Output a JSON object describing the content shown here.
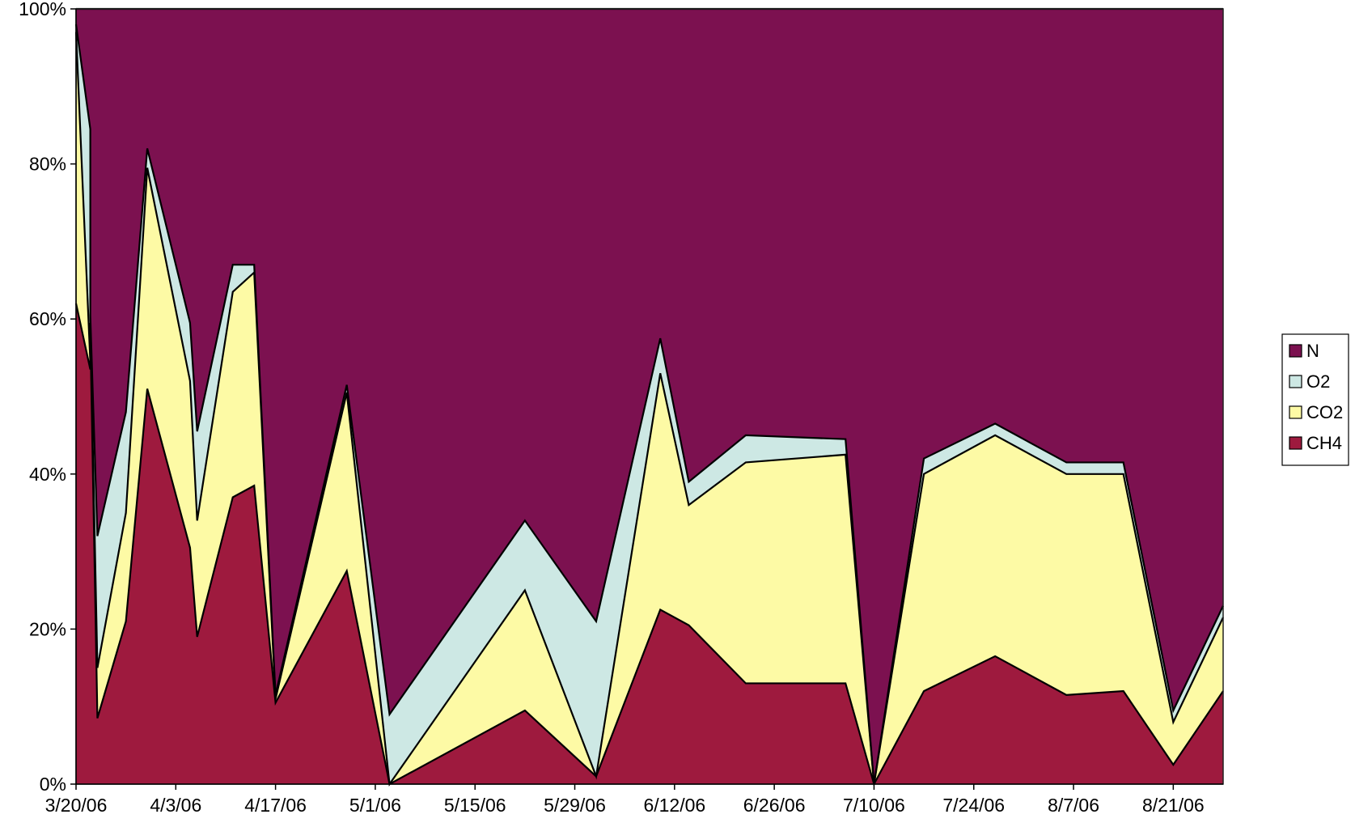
{
  "chart_data": {
    "type": "area",
    "stacked": true,
    "percent": true,
    "title": "",
    "xlabel": "",
    "ylabel": "",
    "ylim": [
      0,
      100
    ],
    "y_ticks": [
      "0%",
      "20%",
      "40%",
      "60%",
      "80%",
      "100%"
    ],
    "x_range": [
      "3/20/06",
      "8/28/06"
    ],
    "x_ticks": [
      "3/20/06",
      "4/3/06",
      "4/17/06",
      "5/1/06",
      "5/15/06",
      "5/29/06",
      "6/12/06",
      "6/26/06",
      "7/10/06",
      "7/24/06",
      "8/7/06",
      "8/21/06"
    ],
    "legend_position": "right",
    "grid": false,
    "x": [
      "3/20/06",
      "3/22/06",
      "3/22/06",
      "3/22/06",
      "3/23/06",
      "3/27/06",
      "3/30/06",
      "4/5/06",
      "4/6/06",
      "4/11/06",
      "4/14/06",
      "4/14/06",
      "4/17/06",
      "4/27/06",
      "5/3/06",
      "5/22/06",
      "6/1/06",
      "6/10/06",
      "6/14/06",
      "6/22/06",
      "7/6/06",
      "7/10/06",
      "7/17/06",
      "7/27/06",
      "8/6/06",
      "8/14/06",
      "8/21/06",
      "8/28/06"
    ],
    "series": [
      {
        "name": "CH4",
        "color": "#9e1a3e",
        "values": [
          62,
          53.5,
          58.5,
          58.5,
          8.5,
          21,
          51,
          30.5,
          19,
          37,
          38.5,
          38.5,
          10.5,
          27.5,
          0,
          9.5,
          1,
          22.5,
          20.5,
          13,
          13,
          0,
          12,
          16.5,
          11.5,
          12,
          2.5,
          12
        ]
      },
      {
        "name": "CO2",
        "color": "#fdfaa5",
        "values": [
          35,
          1,
          1,
          1,
          6.5,
          14,
          28.5,
          21.5,
          15,
          26.5,
          27.5,
          27.5,
          0.5,
          23,
          0,
          15.5,
          0,
          30.5,
          15.5,
          28.5,
          29.5,
          0,
          28,
          28.5,
          28.5,
          28,
          5.5,
          9.5
        ]
      },
      {
        "name": "O2",
        "color": "#cde8e4",
        "values": [
          1,
          30,
          1,
          1,
          17,
          13,
          2.5,
          7.5,
          11.5,
          3.5,
          1,
          1,
          0.5,
          1,
          9,
          9,
          20,
          4.5,
          3,
          3.5,
          2,
          0,
          2,
          1.5,
          1.5,
          1.5,
          1.5,
          1.5
        ]
      },
      {
        "name": "N",
        "color": "#7c1150",
        "values": [
          2,
          15.5,
          39.5,
          39.5,
          68,
          52,
          18,
          40.5,
          54.5,
          33,
          33,
          33,
          88.5,
          48.5,
          91,
          66,
          79,
          42.5,
          61,
          55,
          55.5,
          100,
          58,
          53.5,
          58.5,
          58.5,
          90.5,
          77
        ]
      }
    ]
  }
}
